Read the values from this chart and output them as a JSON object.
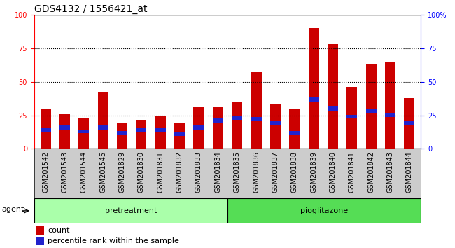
{
  "title": "GDS4132 / 1556421_at",
  "samples": [
    "GSM201542",
    "GSM201543",
    "GSM201544",
    "GSM201545",
    "GSM201829",
    "GSM201830",
    "GSM201831",
    "GSM201832",
    "GSM201833",
    "GSM201834",
    "GSM201835",
    "GSM201836",
    "GSM201837",
    "GSM201838",
    "GSM201839",
    "GSM201840",
    "GSM201841",
    "GSM201842",
    "GSM201843",
    "GSM201844"
  ],
  "count_values": [
    30,
    26,
    23,
    42,
    19,
    21,
    25,
    19,
    31,
    31,
    35,
    57,
    33,
    30,
    90,
    78,
    46,
    63,
    65,
    38
  ],
  "percentile_values": [
    14,
    16,
    13,
    16,
    12,
    14,
    14,
    11,
    16,
    21,
    23,
    22,
    19,
    12,
    37,
    30,
    24,
    28,
    25,
    19
  ],
  "pretreatment_count": 10,
  "pioglitazone_count": 10,
  "bar_color": "#cc0000",
  "percentile_color": "#2222cc",
  "bar_width": 0.55,
  "ylim": [
    0,
    100
  ],
  "yticks": [
    0,
    25,
    50,
    75,
    100
  ],
  "plot_bg_color": "#ffffff",
  "fig_bg_color": "#ffffff",
  "xtick_bg_color": "#cccccc",
  "pretreatment_color": "#aaffaa",
  "pioglitazone_color": "#55dd55",
  "agent_label": "agent",
  "pretreatment_label": "pretreatment",
  "pioglitazone_label": "pioglitazone",
  "legend_count": "count",
  "legend_percentile": "percentile rank within the sample",
  "title_fontsize": 10,
  "tick_fontsize": 7,
  "label_fontsize": 8
}
